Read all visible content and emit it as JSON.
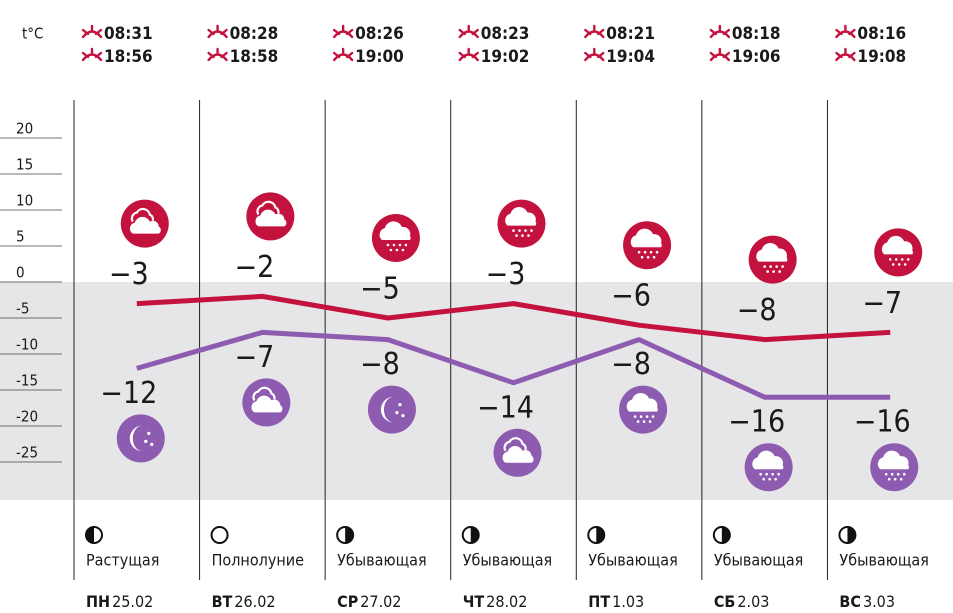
{
  "chart_data": {
    "type": "line",
    "y_label": "t°C",
    "categories": [
      "ПН",
      "ВТ",
      "СР",
      "ЧТ",
      "ПТ",
      "СБ",
      "ВС"
    ],
    "dates": [
      "25.02",
      "26.02",
      "27.02",
      "28.02",
      "1.03",
      "2.03",
      "3.03"
    ],
    "sunrise": [
      "08:31",
      "08:28",
      "08:26",
      "08:23",
      "08:21",
      "08:18",
      "08:16"
    ],
    "sunset": [
      "18:56",
      "18:58",
      "19:00",
      "19:02",
      "19:04",
      "19:06",
      "19:08"
    ],
    "moon_phases": [
      "Растущая",
      "Полнолуние",
      "Убывающая",
      "Убывающая",
      "Убывающая",
      "Убывающая",
      "Убывающая"
    ],
    "series": [
      {
        "color": "#c4123f",
        "values": [
          -3,
          -2,
          -5,
          -3,
          -6,
          -8,
          -7
        ],
        "value_labels": [
          "−3",
          "−2",
          "−5",
          "−3",
          "−6",
          "−8",
          "−7"
        ]
      },
      {
        "color": "#8d5cb0",
        "values": [
          -12,
          -7,
          -8,
          -14,
          -8,
          -16,
          -16
        ],
        "value_labels": [
          "−12",
          "−7",
          "−8",
          "−14",
          "−8",
          "−16",
          "−16"
        ]
      }
    ],
    "ylim": [
      -30,
      25
    ],
    "yticks": [
      20,
      15,
      10,
      5,
      0,
      -5,
      -10,
      -15,
      -20,
      -25
    ]
  }
}
